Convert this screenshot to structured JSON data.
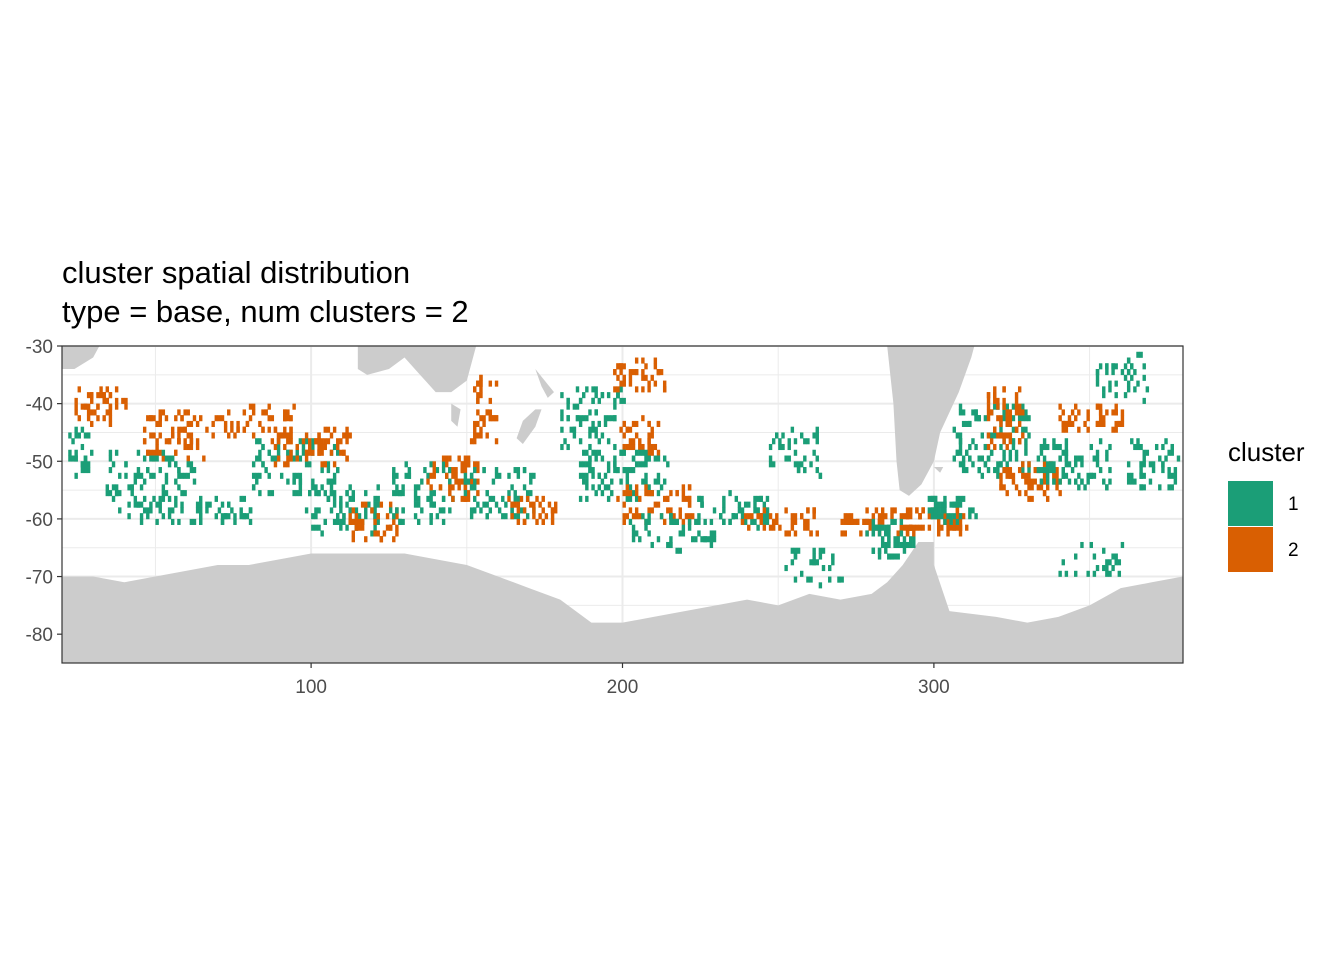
{
  "title": {
    "line1": "cluster spatial distribution",
    "line2": "type = base, num clusters = 2"
  },
  "colors": {
    "cluster_1": "#1B9E77",
    "cluster_2": "#D95F02",
    "land": "#CCCCCC",
    "grid": "#EBEBEB",
    "panel_border": "#333333"
  },
  "chart_data": {
    "type": "heatmap",
    "xlim": [
      20,
      380
    ],
    "ylim": [
      -85,
      -30
    ],
    "x_ticks": [
      100,
      200,
      300
    ],
    "y_ticks": [
      -30,
      -40,
      -50,
      -60,
      -70,
      -80
    ],
    "x_tick_labels": [
      "100",
      "200",
      "300"
    ],
    "y_tick_labels": [
      "-30",
      "-40",
      "-50",
      "-60",
      "-70",
      "-80"
    ],
    "xlabel": "",
    "ylabel": "",
    "grid": true,
    "legend": {
      "title": "cluster",
      "placement": "right",
      "entries": [
        {
          "label": "1",
          "color_key": "cluster_1"
        },
        {
          "label": "2",
          "color_key": "cluster_2"
        }
      ]
    },
    "land_polygons": [
      {
        "name": "antarctica",
        "points": [
          [
            20,
            -85
          ],
          [
            20,
            -70
          ],
          [
            30,
            -70
          ],
          [
            40,
            -71
          ],
          [
            50,
            -70
          ],
          [
            60,
            -69
          ],
          [
            70,
            -68
          ],
          [
            80,
            -68
          ],
          [
            90,
            -67
          ],
          [
            100,
            -66
          ],
          [
            110,
            -66
          ],
          [
            120,
            -66
          ],
          [
            130,
            -66
          ],
          [
            140,
            -67
          ],
          [
            150,
            -68
          ],
          [
            160,
            -70
          ],
          [
            165,
            -71
          ],
          [
            170,
            -72
          ],
          [
            175,
            -73
          ],
          [
            180,
            -74
          ],
          [
            185,
            -76
          ],
          [
            190,
            -78
          ],
          [
            200,
            -78
          ],
          [
            210,
            -77
          ],
          [
            220,
            -76
          ],
          [
            230,
            -75
          ],
          [
            240,
            -74
          ],
          [
            250,
            -75
          ],
          [
            260,
            -73
          ],
          [
            270,
            -74
          ],
          [
            280,
            -73
          ],
          [
            285,
            -71
          ],
          [
            290,
            -68
          ],
          [
            295,
            -64
          ],
          [
            300,
            -64
          ],
          [
            300,
            -68
          ],
          [
            305,
            -76
          ],
          [
            320,
            -77
          ],
          [
            330,
            -78
          ],
          [
            340,
            -77
          ],
          [
            350,
            -75
          ],
          [
            360,
            -72
          ],
          [
            370,
            -71
          ],
          [
            380,
            -70
          ],
          [
            380,
            -85
          ]
        ]
      },
      {
        "name": "africa",
        "points": [
          [
            20,
            -30
          ],
          [
            20,
            -34
          ],
          [
            24,
            -34
          ],
          [
            30,
            -32
          ],
          [
            32,
            -30
          ]
        ]
      },
      {
        "name": "australia",
        "points": [
          [
            115,
            -30
          ],
          [
            115,
            -34
          ],
          [
            118,
            -35
          ],
          [
            125,
            -34
          ],
          [
            130,
            -32
          ],
          [
            135,
            -35
          ],
          [
            140,
            -38
          ],
          [
            145,
            -38
          ],
          [
            150,
            -36
          ],
          [
            153,
            -30
          ]
        ]
      },
      {
        "name": "tasmania",
        "points": [
          [
            145,
            -40
          ],
          [
            145,
            -43
          ],
          [
            147,
            -44
          ],
          [
            148,
            -41
          ]
        ]
      },
      {
        "name": "new-zealand-north",
        "points": [
          [
            172,
            -34
          ],
          [
            174,
            -37
          ],
          [
            176,
            -39
          ],
          [
            178,
            -38
          ]
        ]
      },
      {
        "name": "new-zealand-south",
        "points": [
          [
            166,
            -46
          ],
          [
            168,
            -47
          ],
          [
            172,
            -44
          ],
          [
            174,
            -41
          ],
          [
            172,
            -41
          ],
          [
            168,
            -43
          ]
        ]
      },
      {
        "name": "south-america",
        "points": [
          [
            285,
            -30
          ],
          [
            287,
            -40
          ],
          [
            288,
            -50
          ],
          [
            289,
            -55
          ],
          [
            292,
            -56
          ],
          [
            296,
            -54
          ],
          [
            300,
            -50
          ],
          [
            302,
            -45
          ],
          [
            308,
            -38
          ],
          [
            312,
            -32
          ],
          [
            313,
            -30
          ]
        ]
      },
      {
        "name": "falklands",
        "points": [
          [
            300,
            -51
          ],
          [
            302,
            -52
          ],
          [
            303,
            -51
          ]
        ]
      }
    ],
    "cluster_regions": [
      {
        "cluster": 1,
        "center": [
          25,
          -48
        ],
        "spread": [
          4,
          4
        ],
        "count": 30
      },
      {
        "cluster": 2,
        "center": [
          32,
          -40
        ],
        "spread": [
          8,
          3
        ],
        "count": 45
      },
      {
        "cluster": 2,
        "center": [
          55,
          -45
        ],
        "spread": [
          10,
          4
        ],
        "count": 70
      },
      {
        "cluster": 1,
        "center": [
          48,
          -52
        ],
        "spread": [
          14,
          4
        ],
        "count": 70
      },
      {
        "cluster": 1,
        "center": [
          60,
          -58
        ],
        "spread": [
          22,
          2
        ],
        "count": 70
      },
      {
        "cluster": 2,
        "center": [
          80,
          -43
        ],
        "spread": [
          14,
          3
        ],
        "count": 55
      },
      {
        "cluster": 1,
        "center": [
          95,
          -50
        ],
        "spread": [
          14,
          5
        ],
        "count": 80
      },
      {
        "cluster": 2,
        "center": [
          100,
          -47
        ],
        "spread": [
          12,
          3
        ],
        "count": 70
      },
      {
        "cluster": 1,
        "center": [
          110,
          -58
        ],
        "spread": [
          12,
          4
        ],
        "count": 75
      },
      {
        "cluster": 2,
        "center": [
          120,
          -60
        ],
        "spread": [
          8,
          3
        ],
        "count": 40
      },
      {
        "cluster": 1,
        "center": [
          135,
          -55
        ],
        "spread": [
          10,
          5
        ],
        "count": 70
      },
      {
        "cluster": 2,
        "center": [
          145,
          -52
        ],
        "spread": [
          8,
          4
        ],
        "count": 55
      },
      {
        "cluster": 2,
        "center": [
          155,
          -40
        ],
        "spread": [
          4,
          6
        ],
        "count": 40
      },
      {
        "cluster": 1,
        "center": [
          160,
          -55
        ],
        "spread": [
          12,
          4
        ],
        "count": 70
      },
      {
        "cluster": 2,
        "center": [
          170,
          -58
        ],
        "spread": [
          8,
          2
        ],
        "count": 35
      },
      {
        "cluster": 1,
        "center": [
          190,
          -42
        ],
        "spread": [
          10,
          6
        ],
        "count": 75
      },
      {
        "cluster": 2,
        "center": [
          205,
          -35
        ],
        "spread": [
          8,
          3
        ],
        "count": 45
      },
      {
        "cluster": 2,
        "center": [
          205,
          -45
        ],
        "spread": [
          6,
          3
        ],
        "count": 35
      },
      {
        "cluster": 1,
        "center": [
          200,
          -52
        ],
        "spread": [
          14,
          4
        ],
        "count": 90
      },
      {
        "cluster": 2,
        "center": [
          210,
          -57
        ],
        "spread": [
          12,
          3
        ],
        "count": 60
      },
      {
        "cluster": 1,
        "center": [
          215,
          -62
        ],
        "spread": [
          14,
          3
        ],
        "count": 50
      },
      {
        "cluster": 1,
        "center": [
          235,
          -58
        ],
        "spread": [
          12,
          3
        ],
        "count": 55
      },
      {
        "cluster": 2,
        "center": [
          250,
          -60
        ],
        "spread": [
          12,
          2
        ],
        "count": 45
      },
      {
        "cluster": 1,
        "center": [
          255,
          -48
        ],
        "spread": [
          8,
          4
        ],
        "count": 40
      },
      {
        "cluster": 1,
        "center": [
          260,
          -68
        ],
        "spread": [
          10,
          3
        ],
        "count": 30
      },
      {
        "cluster": 2,
        "center": [
          280,
          -60
        ],
        "spread": [
          10,
          2
        ],
        "count": 50
      },
      {
        "cluster": 1,
        "center": [
          285,
          -63
        ],
        "spread": [
          8,
          3
        ],
        "count": 55
      },
      {
        "cluster": 2,
        "center": [
          300,
          -60
        ],
        "spread": [
          10,
          2
        ],
        "count": 60
      },
      {
        "cluster": 1,
        "center": [
          305,
          -58
        ],
        "spread": [
          8,
          2
        ],
        "count": 45
      },
      {
        "cluster": 1,
        "center": [
          318,
          -46
        ],
        "spread": [
          12,
          6
        ],
        "count": 120
      },
      {
        "cluster": 2,
        "center": [
          322,
          -42
        ],
        "spread": [
          6,
          5
        ],
        "count": 60
      },
      {
        "cluster": 2,
        "center": [
          330,
          -53
        ],
        "spread": [
          10,
          3
        ],
        "count": 55
      },
      {
        "cluster": 1,
        "center": [
          345,
          -50
        ],
        "spread": [
          12,
          4
        ],
        "count": 80
      },
      {
        "cluster": 2,
        "center": [
          350,
          -42
        ],
        "spread": [
          10,
          2
        ],
        "count": 50
      },
      {
        "cluster": 1,
        "center": [
          360,
          -35
        ],
        "spread": [
          8,
          4
        ],
        "count": 40
      },
      {
        "cluster": 1,
        "center": [
          370,
          -50
        ],
        "spread": [
          8,
          4
        ],
        "count": 50
      },
      {
        "cluster": 1,
        "center": [
          350,
          -67
        ],
        "spread": [
          10,
          3
        ],
        "count": 25
      }
    ]
  }
}
